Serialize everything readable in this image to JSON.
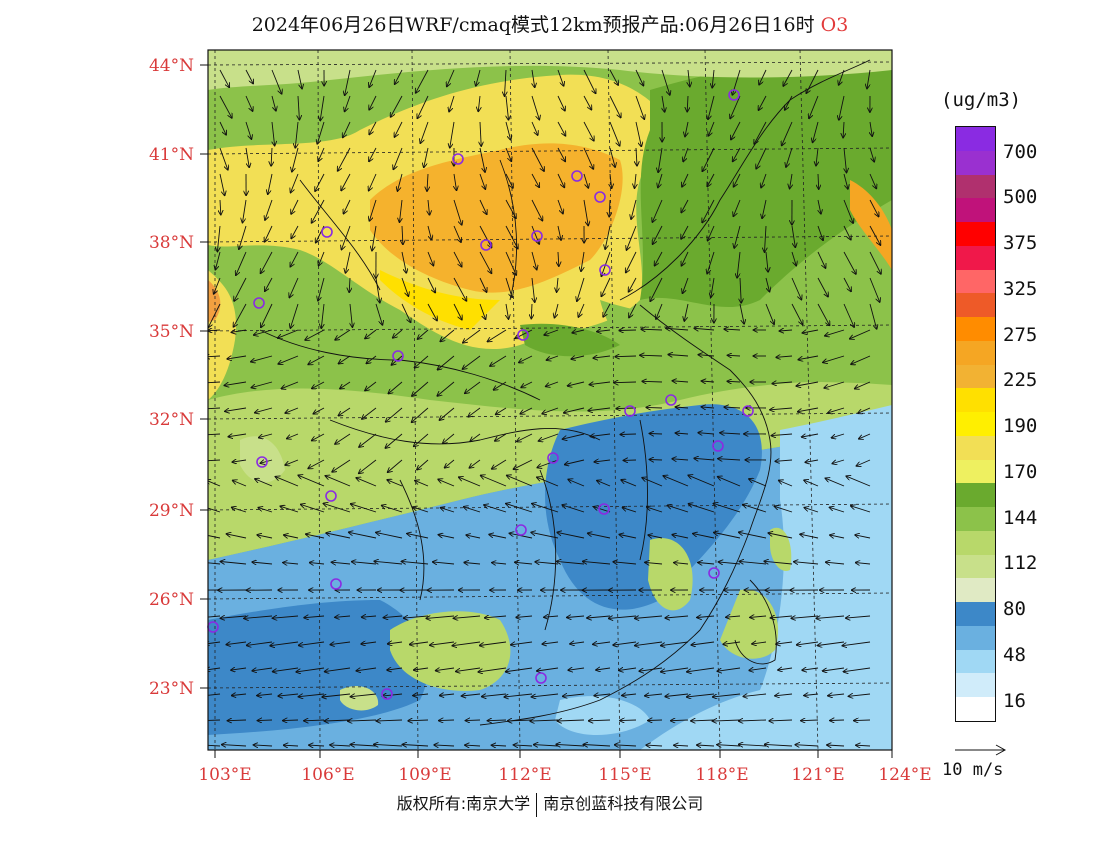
{
  "header": {
    "title": "2024年06月26日WRF/cmaq模式12km预报产品:06月26日16时",
    "species": "O3"
  },
  "map": {
    "lat_ticks": [
      "44°N",
      "41°N",
      "38°N",
      "35°N",
      "32°N",
      "29°N",
      "26°N",
      "23°N"
    ],
    "lon_ticks": [
      "103°E",
      "106°E",
      "109°E",
      "112°E",
      "115°E",
      "118°E",
      "121°E",
      "124°E"
    ],
    "stations_color": "#8a2be2"
  },
  "legend": {
    "unit": "(ug/m3)",
    "swatches": [
      {
        "color": "#8a2be2"
      },
      {
        "color": "#9a30d0"
      },
      {
        "color": "#b0306e"
      },
      {
        "color": "#c0127a"
      },
      {
        "color": "#ff0000"
      },
      {
        "color": "#f0184a"
      },
      {
        "color": "#ff6666"
      },
      {
        "color": "#ee5a28"
      },
      {
        "color": "#ff8c00"
      },
      {
        "color": "#f5a623"
      },
      {
        "color": "#f2b233"
      },
      {
        "color": "#ffe000"
      },
      {
        "color": "#ffef00"
      },
      {
        "color": "#f2df55"
      },
      {
        "color": "#eef060"
      },
      {
        "color": "#6aaa2e"
      },
      {
        "color": "#8cc24a"
      },
      {
        "color": "#b8d86a"
      },
      {
        "color": "#c8e08a"
      },
      {
        "color": "#e0eac4"
      },
      {
        "color": "#3d88c8"
      },
      {
        "color": "#6ab0e0"
      },
      {
        "color": "#a0d8f4"
      },
      {
        "color": "#d0ecfa"
      },
      {
        "color": "#ffffff"
      }
    ],
    "labels": [
      "700",
      "500",
      "375",
      "325",
      "275",
      "225",
      "190",
      "170",
      "144",
      "112",
      "80",
      "48",
      "16"
    ],
    "wind_reference": "10 m/s"
  },
  "footer": {
    "copyright_left": "版权所有:南京大学",
    "copyright_right": "南京创蓝科技有限公司"
  }
}
